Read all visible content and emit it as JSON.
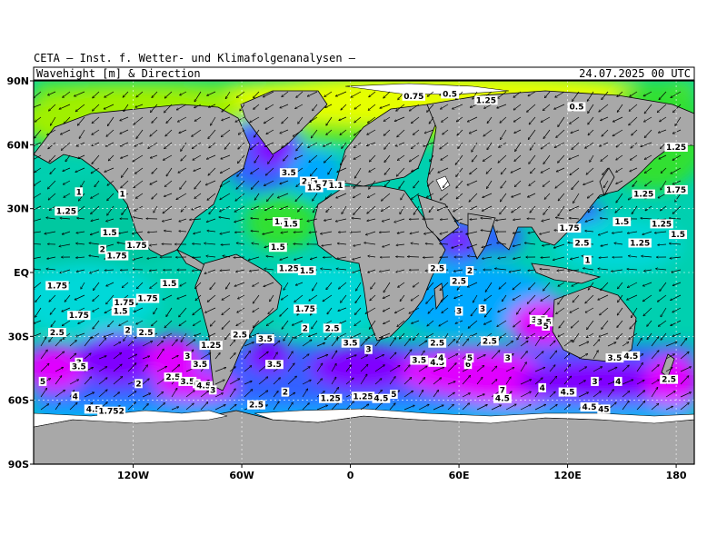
{
  "header": {
    "institute": "CETA — Inst. f. Wetter- und Klimafolgenanalysen —",
    "product": "Wavehight [m] & Direction",
    "datetime": "24.07.2025 00 UTC"
  },
  "axes": {
    "lon_range": [
      -175,
      190
    ],
    "lat_range": [
      -90,
      90
    ],
    "lon_ticks": [
      {
        "lon": -120,
        "label": "120W"
      },
      {
        "lon": -60,
        "label": "60W"
      },
      {
        "lon": 0,
        "label": "0"
      },
      {
        "lon": 60,
        "label": "60E"
      },
      {
        "lon": 120,
        "label": "120E"
      },
      {
        "lon": 180,
        "label": "180"
      }
    ],
    "lat_ticks": [
      {
        "lat": 90,
        "label": "90N"
      },
      {
        "lat": 60,
        "label": "60N"
      },
      {
        "lat": 30,
        "label": "30N"
      },
      {
        "lat": 0,
        "label": "EQ"
      },
      {
        "lat": -30,
        "label": "30S"
      },
      {
        "lat": -60,
        "label": "60S"
      },
      {
        "lat": -90,
        "label": "90S"
      }
    ]
  },
  "colors": {
    "land": "#a8a8a8",
    "coast": "#000000",
    "ice": "#ffffff",
    "wave_scale": [
      "#e6ff00",
      "#a0f000",
      "#30e030",
      "#00d890",
      "#00d8d8",
      "#00a8ff",
      "#3060ff",
      "#8000ff",
      "#e000ff"
    ]
  },
  "chart_data": {
    "type": "heatmap",
    "field": "significant wave height",
    "contour_labels": [
      {
        "lon": 35,
        "lat": 82,
        "label": "0.75"
      },
      {
        "lon": 55,
        "lat": 83,
        "label": "0.5"
      },
      {
        "lon": 75,
        "lat": 80,
        "label": "1.25"
      },
      {
        "lon": 125,
        "lat": 77,
        "label": "0.5"
      },
      {
        "lon": 180,
        "lat": 58,
        "label": "1.25"
      },
      {
        "lon": 180,
        "lat": 38,
        "label": "1.75"
      },
      {
        "lon": -34,
        "lat": 46,
        "label": "3.5"
      },
      {
        "lon": -23,
        "lat": 42,
        "label": "2.5"
      },
      {
        "lon": -15,
        "lat": 41,
        "label": "1.75"
      },
      {
        "lon": -20,
        "lat": 39,
        "label": "1.5"
      },
      {
        "lon": -8,
        "lat": 40,
        "label": "1.1"
      },
      {
        "lon": -150,
        "lat": 37,
        "label": "1"
      },
      {
        "lon": -126,
        "lat": 36,
        "label": "1"
      },
      {
        "lon": -157,
        "lat": 28,
        "label": "1.25"
      },
      {
        "lon": -133,
        "lat": 18,
        "label": "1.5"
      },
      {
        "lon": -118,
        "lat": 12,
        "label": "1.75"
      },
      {
        "lon": -137,
        "lat": 10,
        "label": "2"
      },
      {
        "lon": -129,
        "lat": 7,
        "label": "1.75"
      },
      {
        "lon": -38,
        "lat": 23,
        "label": "1.5"
      },
      {
        "lon": -33,
        "lat": 22,
        "label": "1.5"
      },
      {
        "lon": -40,
        "lat": 11,
        "label": "1.5"
      },
      {
        "lon": -34,
        "lat": 1,
        "label": "1.25"
      },
      {
        "lon": -24,
        "lat": 0,
        "label": "1.5"
      },
      {
        "lon": -162,
        "lat": -7,
        "label": "1.75"
      },
      {
        "lon": -100,
        "lat": -6,
        "label": "1.5"
      },
      {
        "lon": -112,
        "lat": -13,
        "label": "1.75"
      },
      {
        "lon": -125,
        "lat": -15,
        "label": "1.75"
      },
      {
        "lon": -127,
        "lat": -19,
        "label": "1.5"
      },
      {
        "lon": -150,
        "lat": -21,
        "label": "1.75"
      },
      {
        "lon": -25,
        "lat": -18,
        "label": "1.75"
      },
      {
        "lon": -162,
        "lat": -29,
        "label": "2.5"
      },
      {
        "lon": -123,
        "lat": -28,
        "label": "2"
      },
      {
        "lon": -113,
        "lat": -29,
        "label": "2.5"
      },
      {
        "lon": -25,
        "lat": -27,
        "label": "2"
      },
      {
        "lon": -10,
        "lat": -27,
        "label": "2.5"
      },
      {
        "lon": -47,
        "lat": -32,
        "label": "3.5"
      },
      {
        "lon": -77,
        "lat": -35,
        "label": "1.25"
      },
      {
        "lon": 0,
        "lat": -34,
        "label": "3.5"
      },
      {
        "lon": 10,
        "lat": -37,
        "label": "3"
      },
      {
        "lon": 48,
        "lat": -34,
        "label": "2.5"
      },
      {
        "lon": 77,
        "lat": -33,
        "label": "2.5"
      },
      {
        "lon": 104,
        "lat": -23,
        "label": "3.5"
      },
      {
        "lon": 107,
        "lat": -24,
        "label": "3.5"
      },
      {
        "lon": 108,
        "lat": -26,
        "label": "5"
      },
      {
        "lon": 60,
        "lat": -19,
        "label": "3"
      },
      {
        "lon": 73,
        "lat": -18,
        "label": "3"
      },
      {
        "lon": 48,
        "lat": 1,
        "label": "2.5"
      },
      {
        "lon": 66,
        "lat": 0,
        "label": "2"
      },
      {
        "lon": 60,
        "lat": -5,
        "label": "2.5"
      },
      {
        "lon": -90,
        "lat": -40,
        "label": "3"
      },
      {
        "lon": -83,
        "lat": -44,
        "label": "3.5"
      },
      {
        "lon": -98,
        "lat": -50,
        "label": "2.5"
      },
      {
        "lon": -90,
        "lat": -52,
        "label": "3.5"
      },
      {
        "lon": -85,
        "lat": -53,
        "label": "6"
      },
      {
        "lon": -81,
        "lat": -54,
        "label": "4.5"
      },
      {
        "lon": -76,
        "lat": -56,
        "label": "3"
      },
      {
        "lon": -150,
        "lat": -43,
        "label": "3"
      },
      {
        "lon": -150,
        "lat": -45,
        "label": "3.5"
      },
      {
        "lon": -117,
        "lat": -53,
        "label": "2"
      },
      {
        "lon": -152,
        "lat": -59,
        "label": "4"
      },
      {
        "lon": -170,
        "lat": -52,
        "label": "5"
      },
      {
        "lon": -142,
        "lat": -65,
        "label": "4.5"
      },
      {
        "lon": -132,
        "lat": -66,
        "label": "1.752"
      },
      {
        "lon": -61,
        "lat": -30,
        "label": "2.5"
      },
      {
        "lon": -42,
        "lat": -44,
        "label": "3.5"
      },
      {
        "lon": -36,
        "lat": -57,
        "label": "2"
      },
      {
        "lon": -52,
        "lat": -63,
        "label": "2.5"
      },
      {
        "lon": -11,
        "lat": -60,
        "label": "1.25"
      },
      {
        "lon": 7,
        "lat": -59,
        "label": "1.25"
      },
      {
        "lon": 17,
        "lat": -60,
        "label": "4.5"
      },
      {
        "lon": 24,
        "lat": -58,
        "label": "5"
      },
      {
        "lon": 38,
        "lat": -42,
        "label": "3.5"
      },
      {
        "lon": 48,
        "lat": -43,
        "label": "4.5"
      },
      {
        "lon": 50,
        "lat": -41,
        "label": "4"
      },
      {
        "lon": 65,
        "lat": -44,
        "label": "6"
      },
      {
        "lon": 66,
        "lat": -41,
        "label": "5"
      },
      {
        "lon": 87,
        "lat": -41,
        "label": "3"
      },
      {
        "lon": 84,
        "lat": -56,
        "label": "7"
      },
      {
        "lon": 84,
        "lat": -60,
        "label": "4.5"
      },
      {
        "lon": 106,
        "lat": -55,
        "label": "4"
      },
      {
        "lon": 120,
        "lat": -57,
        "label": "4.5"
      },
      {
        "lon": 135,
        "lat": -52,
        "label": "3"
      },
      {
        "lon": 146,
        "lat": -41,
        "label": "3.5"
      },
      {
        "lon": 155,
        "lat": -40,
        "label": "4.5"
      },
      {
        "lon": 148,
        "lat": -52,
        "label": "4"
      },
      {
        "lon": 176,
        "lat": -51,
        "label": "2.5"
      },
      {
        "lon": 132,
        "lat": -64,
        "label": "4.5"
      },
      {
        "lon": 140,
        "lat": -65,
        "label": "45"
      },
      {
        "lon": 121,
        "lat": 20,
        "label": "1.75"
      },
      {
        "lon": 128,
        "lat": 13,
        "label": "2.5"
      },
      {
        "lon": 131,
        "lat": 5,
        "label": "1"
      },
      {
        "lon": 150,
        "lat": 23,
        "label": "1.5"
      },
      {
        "lon": 162,
        "lat": 36,
        "label": "1.25"
      },
      {
        "lon": 172,
        "lat": 22,
        "label": "1.25"
      },
      {
        "lon": 160,
        "lat": 13,
        "label": "1.25"
      },
      {
        "lon": 181,
        "lat": 17,
        "label": "1.5"
      }
    ]
  }
}
